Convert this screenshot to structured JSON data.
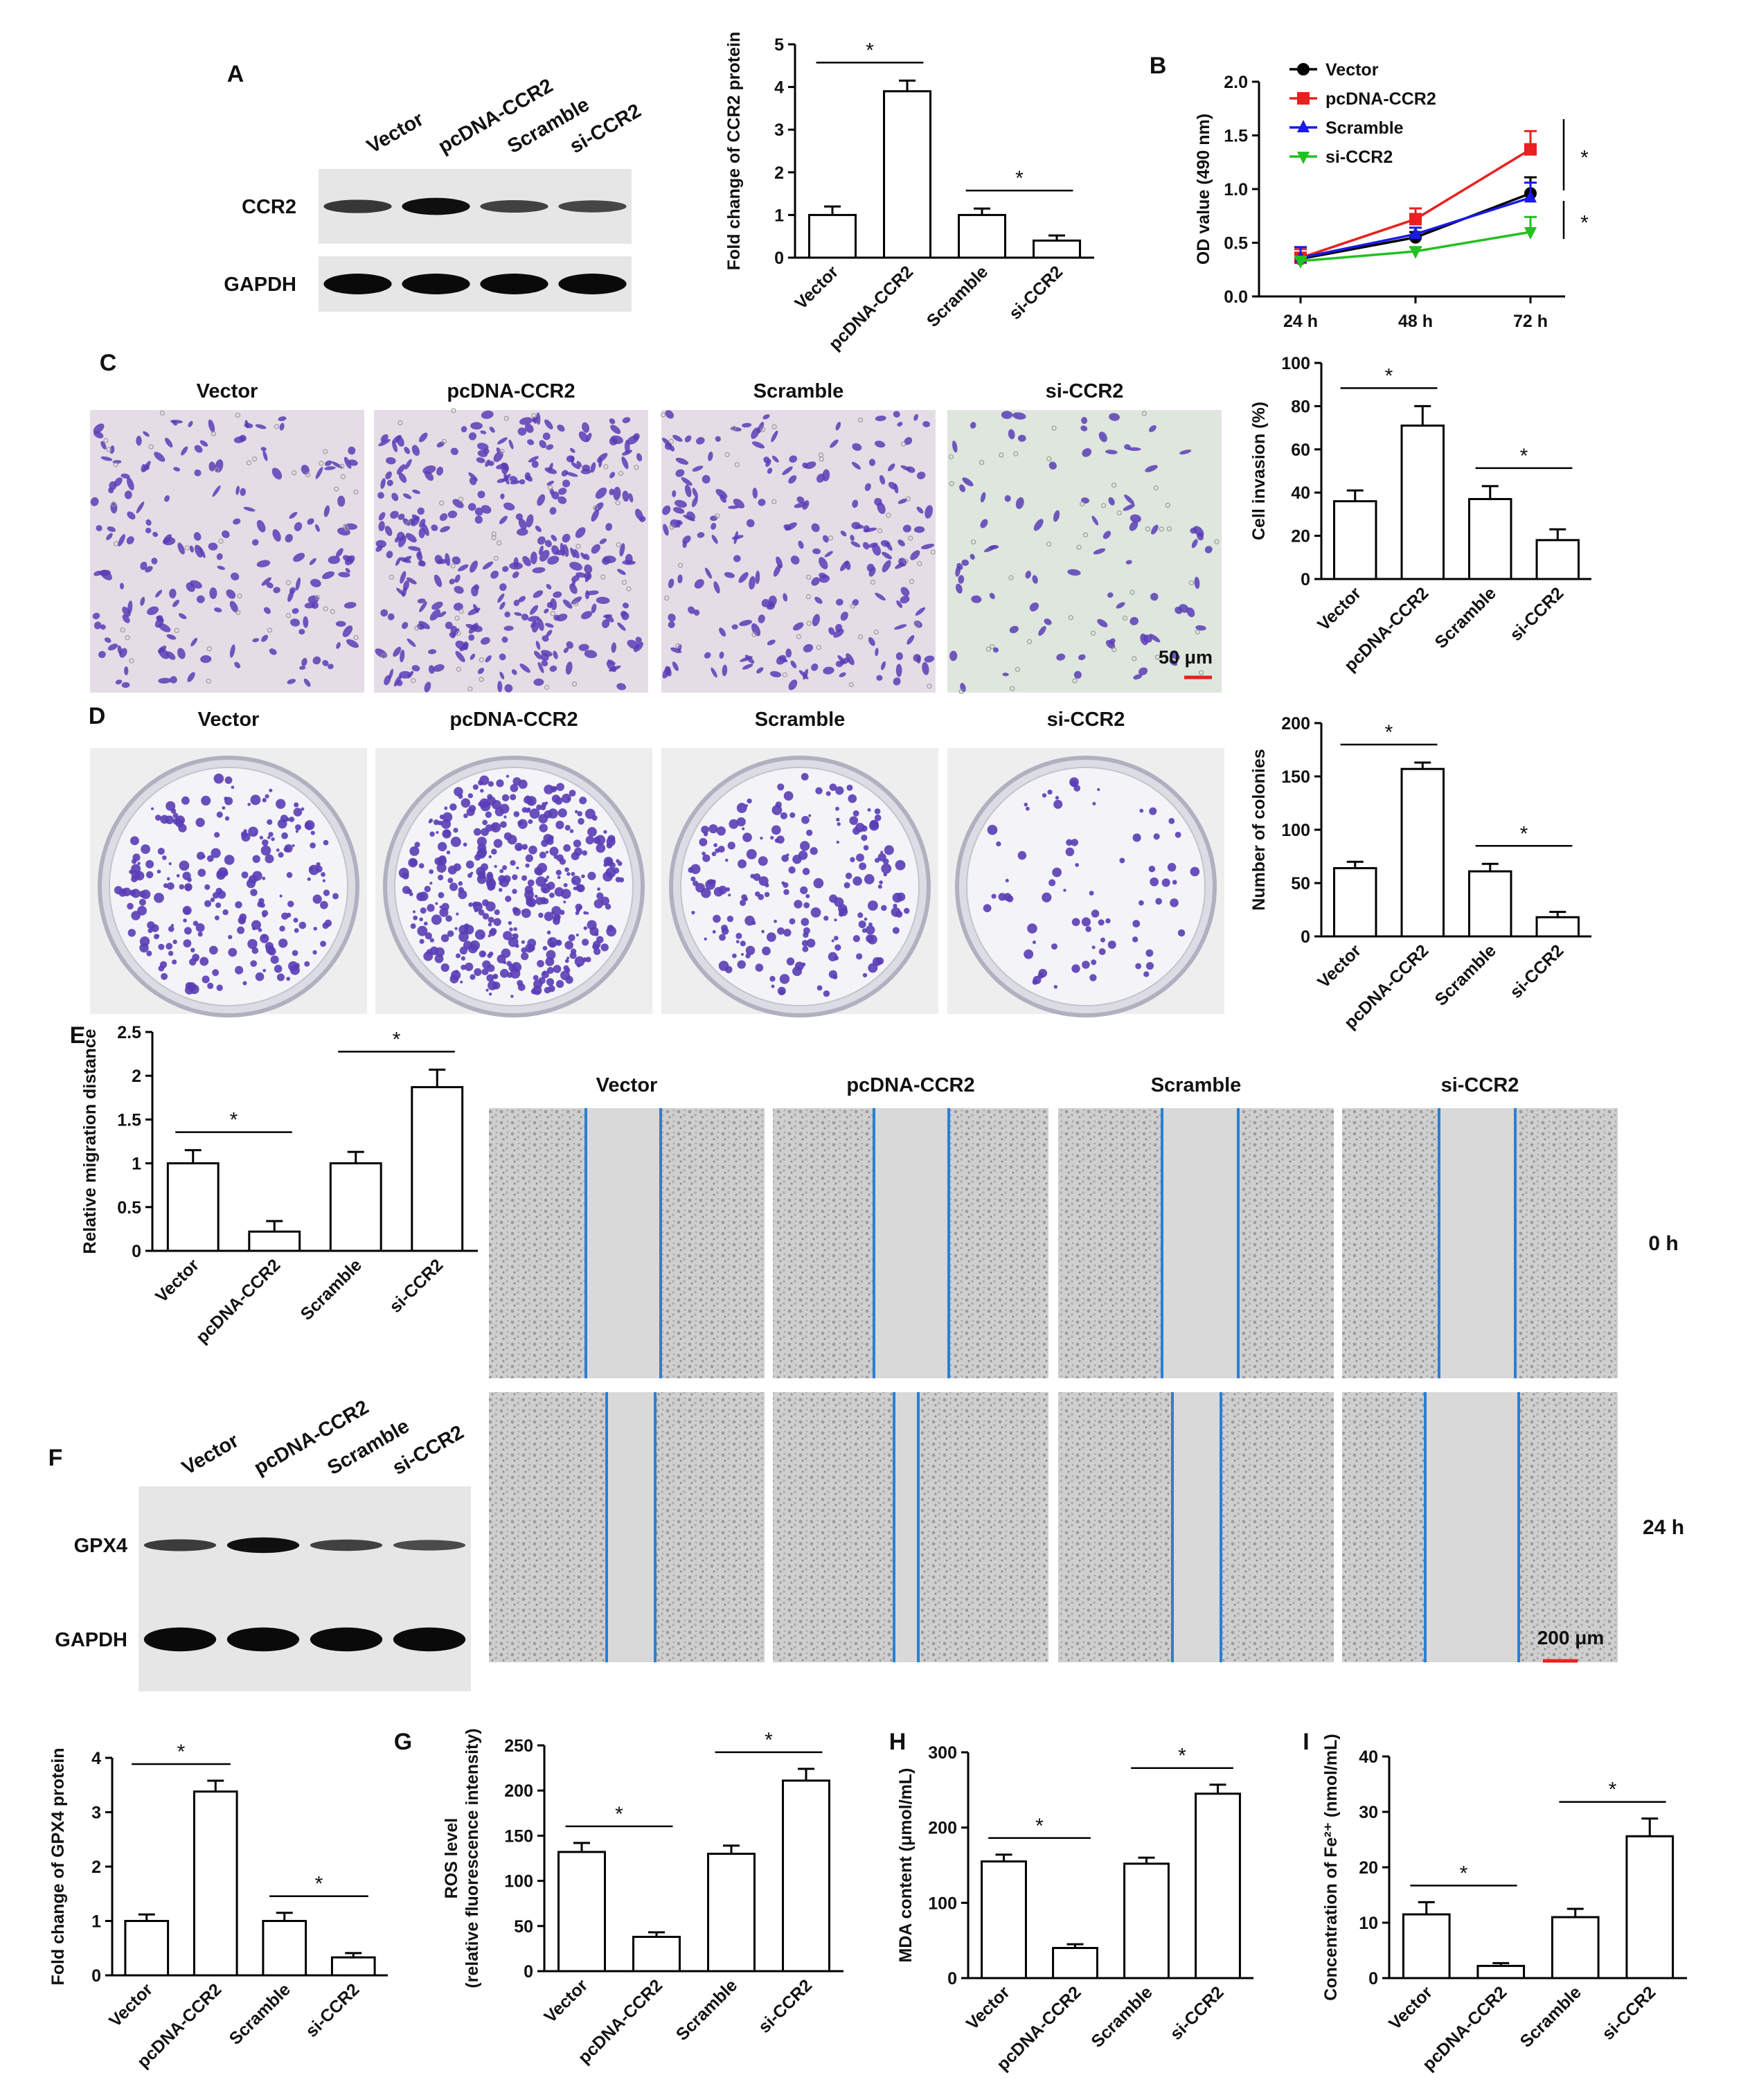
{
  "panels": {
    "A": {
      "letter": "A",
      "blot": {
        "lanes": [
          "Vector",
          "pcDNA-CCR2",
          "Scramble",
          "si-CCR2"
        ],
        "rows": [
          "CCR2",
          "GAPDH"
        ],
        "intensity": {
          "CCR2": [
            0.55,
            0.95,
            0.45,
            0.4
          ],
          "GAPDH": [
            1,
            1,
            1,
            1
          ]
        }
      }
    },
    "B": {
      "letter": "B"
    },
    "C": {
      "letter": "C",
      "image_titles": [
        "Vector",
        "pcDNA-CCR2",
        "Scramble",
        "si-CCR2"
      ],
      "scale": "50 μm"
    },
    "D": {
      "letter": "D",
      "image_titles": [
        "Vector",
        "pcDNA-CCR2",
        "Scramble",
        "si-CCR2"
      ]
    },
    "E": {
      "letter": "E",
      "image_titles": [
        "Vector",
        "pcDNA-CCR2",
        "Scramble",
        "si-CCR2"
      ],
      "time_labels": [
        "0 h",
        "24 h"
      ],
      "scale": "200 μm"
    },
    "F": {
      "letter": "F",
      "blot": {
        "lanes": [
          "Vector",
          "pcDNA-CCR2",
          "Scramble",
          "si-CCR2"
        ],
        "rows": [
          "GPX4",
          "GAPDH"
        ],
        "intensity": {
          "GPX4": [
            0.5,
            0.95,
            0.45,
            0.35
          ],
          "GAPDH": [
            1,
            1,
            1,
            1
          ]
        }
      }
    },
    "G": {
      "letter": "G"
    },
    "H": {
      "letter": "H"
    },
    "I": {
      "letter": "I"
    }
  },
  "colors": {
    "vector": "#000000",
    "pcdna": "#e8201e",
    "scramble": "#1a1ae6",
    "si": "#22c022",
    "stain": "#5a3db5",
    "wound_line": "#2a7fd4",
    "scale_bar": "#e8201e"
  },
  "chart_data": [
    {
      "id": "A-bar",
      "type": "bar",
      "ylabel": "Fold change of CCR2 protein",
      "categories": [
        "Vector",
        "pcDNA-CCR2",
        "Scramble",
        "si-CCR2"
      ],
      "values": [
        1.0,
        3.9,
        1.0,
        0.4
      ],
      "errors": [
        0.2,
        0.25,
        0.15,
        0.12
      ],
      "ylim": [
        0,
        5
      ],
      "yticks": [
        0,
        1,
        2,
        3,
        4,
        5
      ],
      "significance": [
        {
          "pair": [
            0,
            1
          ],
          "label": "*"
        },
        {
          "pair": [
            2,
            3
          ],
          "label": "*"
        }
      ]
    },
    {
      "id": "B-line",
      "type": "line",
      "ylabel": "OD value (490 nm)",
      "categories": [
        "24 h",
        "48 h",
        "72 h"
      ],
      "ylim": [
        0,
        2.0
      ],
      "yticks": [
        0.0,
        0.5,
        1.0,
        1.5,
        2.0
      ],
      "legend_position": "top-left",
      "series": [
        {
          "name": "Vector",
          "values": [
            0.35,
            0.55,
            0.96
          ],
          "errors": [
            0.05,
            0.05,
            0.15
          ],
          "color": "#000000",
          "marker": "circle"
        },
        {
          "name": "pcDNA-CCR2",
          "values": [
            0.36,
            0.72,
            1.37
          ],
          "errors": [
            0.08,
            0.1,
            0.17
          ],
          "color": "#e8201e",
          "marker": "square"
        },
        {
          "name": "Scramble",
          "values": [
            0.36,
            0.58,
            0.92
          ],
          "errors": [
            0.1,
            0.06,
            0.14
          ],
          "color": "#1a1ae6",
          "marker": "triangle-up"
        },
        {
          "name": "si-CCR2",
          "values": [
            0.33,
            0.42,
            0.6
          ],
          "errors": [
            0.04,
            0.04,
            0.14
          ],
          "color": "#22c022",
          "marker": "triangle-down"
        }
      ],
      "significance": [
        {
          "label": "*"
        },
        {
          "label": "*"
        }
      ]
    },
    {
      "id": "C-bar",
      "type": "bar",
      "ylabel": "Cell invasion (%)",
      "categories": [
        "Vector",
        "pcDNA-CCR2",
        "Scramble",
        "si-CCR2"
      ],
      "values": [
        36,
        71,
        37,
        18
      ],
      "errors": [
        5,
        9,
        6,
        5
      ],
      "ylim": [
        0,
        100
      ],
      "yticks": [
        0,
        20,
        40,
        60,
        80,
        100
      ],
      "significance": [
        {
          "pair": [
            0,
            1
          ],
          "label": "*"
        },
        {
          "pair": [
            2,
            3
          ],
          "label": "*"
        }
      ]
    },
    {
      "id": "D-bar",
      "type": "bar",
      "ylabel": "Number of colonies",
      "categories": [
        "Vector",
        "pcDNA-CCR2",
        "Scramble",
        "si-CCR2"
      ],
      "values": [
        64,
        157,
        61,
        18
      ],
      "errors": [
        6,
        6,
        7,
        5
      ],
      "ylim": [
        0,
        200
      ],
      "yticks": [
        0,
        50,
        100,
        150,
        200
      ],
      "significance": [
        {
          "pair": [
            0,
            1
          ],
          "label": "*"
        },
        {
          "pair": [
            2,
            3
          ],
          "label": "*"
        }
      ]
    },
    {
      "id": "E-bar",
      "type": "bar",
      "ylabel": "Relative migration distance",
      "categories": [
        "Vector",
        "pcDNA-CCR2",
        "Scramble",
        "si-CCR2"
      ],
      "values": [
        1.0,
        0.22,
        1.0,
        1.87
      ],
      "errors": [
        0.15,
        0.12,
        0.13,
        0.2
      ],
      "ylim": [
        0,
        2.5
      ],
      "yticks": [
        0.0,
        0.5,
        1.0,
        1.5,
        2.0,
        2.5
      ],
      "significance": [
        {
          "pair": [
            0,
            1
          ],
          "label": "*"
        },
        {
          "pair": [
            2,
            3
          ],
          "label": "*"
        }
      ]
    },
    {
      "id": "F-bar",
      "type": "bar",
      "ylabel": "Fold change of GPX4 protein",
      "categories": [
        "Vector",
        "pcDNA-CCR2",
        "Scramble",
        "si-CCR2"
      ],
      "values": [
        1.0,
        3.38,
        1.0,
        0.33
      ],
      "errors": [
        0.12,
        0.2,
        0.15,
        0.08
      ],
      "ylim": [
        0,
        4
      ],
      "yticks": [
        0,
        1,
        2,
        3,
        4
      ],
      "significance": [
        {
          "pair": [
            0,
            1
          ],
          "label": "*"
        },
        {
          "pair": [
            2,
            3
          ],
          "label": "*"
        }
      ]
    },
    {
      "id": "G-bar",
      "type": "bar",
      "ylabel": "ROS level",
      "ylabel2": "(relative fluorescence intensity)",
      "categories": [
        "Vector",
        "pcDNA-CCR2",
        "Scramble",
        "si-CCR2"
      ],
      "values": [
        132,
        38,
        130,
        211
      ],
      "errors": [
        10,
        5,
        9,
        13
      ],
      "ylim": [
        0,
        250
      ],
      "yticks": [
        0,
        50,
        100,
        150,
        200,
        250
      ],
      "significance": [
        {
          "pair": [
            0,
            1
          ],
          "label": "*"
        },
        {
          "pair": [
            2,
            3
          ],
          "label": "*"
        }
      ]
    },
    {
      "id": "H-bar",
      "type": "bar",
      "ylabel": "MDA content (μmol/mL)",
      "categories": [
        "Vector",
        "pcDNA-CCR2",
        "Scramble",
        "si-CCR2"
      ],
      "values": [
        155,
        40,
        152,
        245
      ],
      "errors": [
        9,
        5,
        8,
        12
      ],
      "ylim": [
        0,
        300
      ],
      "yticks": [
        0,
        100,
        200,
        300
      ],
      "significance": [
        {
          "pair": [
            0,
            1
          ],
          "label": "*"
        },
        {
          "pair": [
            2,
            3
          ],
          "label": "*"
        }
      ]
    },
    {
      "id": "I-bar",
      "type": "bar",
      "ylabel": "Concentration of Fe²⁺ (nmol/mL)",
      "categories": [
        "Vector",
        "pcDNA-CCR2",
        "Scramble",
        "si-CCR2"
      ],
      "values": [
        11.5,
        2.2,
        11,
        25.6
      ],
      "errors": [
        2.2,
        0.5,
        1.5,
        3.2
      ],
      "ylim": [
        0,
        40
      ],
      "yticks": [
        0,
        10,
        20,
        30,
        40
      ],
      "significance": [
        {
          "pair": [
            0,
            1
          ],
          "label": "*"
        },
        {
          "pair": [
            2,
            3
          ],
          "label": "*"
        }
      ]
    }
  ]
}
